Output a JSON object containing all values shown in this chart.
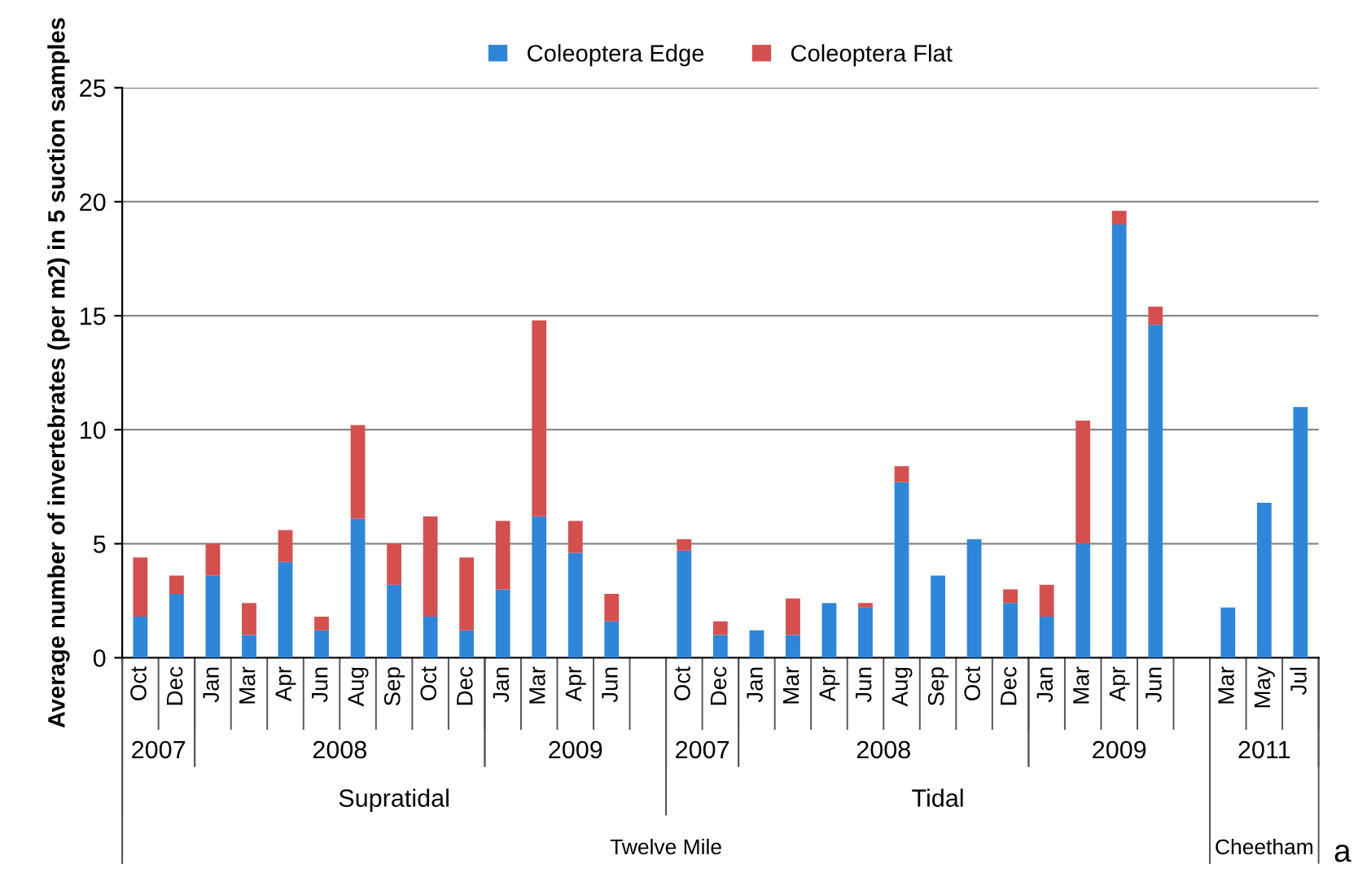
{
  "chart_data": {
    "type": "bar",
    "stacked": true,
    "ylabel": "Average number of invertebrates (per m2) in 5 suction samples",
    "categories": [
      "Oct",
      "Dec",
      "Jan",
      "Mar",
      "Apr",
      "Jun",
      "Aug",
      "Sep",
      "Oct",
      "Dec",
      "Jan",
      "Mar",
      "Apr",
      "Jun",
      null,
      "Oct",
      "Dec",
      "Jan",
      "Mar",
      "Apr",
      "Jun",
      "Aug",
      "Sep",
      "Oct",
      "Dec",
      "Jan",
      "Mar",
      "Apr",
      "Jun",
      null,
      "Mar",
      "May",
      "Jul"
    ],
    "series": [
      {
        "name": "Coleoptera Edge",
        "color": "#2f86d8",
        "values": [
          1.8,
          2.8,
          3.6,
          1.0,
          4.2,
          1.2,
          6.1,
          3.2,
          1.8,
          1.2,
          3.0,
          6.2,
          4.6,
          1.6,
          null,
          4.7,
          1.0,
          1.2,
          1.0,
          2.4,
          2.2,
          7.7,
          3.6,
          5.2,
          2.4,
          1.8,
          5.0,
          19.0,
          14.6,
          null,
          2.2,
          6.8,
          11.0
        ]
      },
      {
        "name": "Coleoptera Flat",
        "color": "#d4504f",
        "values": [
          2.6,
          0.8,
          1.4,
          1.4,
          1.4,
          0.6,
          4.1,
          1.8,
          4.4,
          3.2,
          3.0,
          8.6,
          1.4,
          1.2,
          null,
          0.5,
          0.6,
          0,
          1.6,
          0,
          0.2,
          0.7,
          0,
          0,
          0.6,
          1.4,
          5.4,
          0.6,
          0.8,
          null,
          0,
          0,
          0
        ]
      }
    ],
    "ylim": [
      0,
      25
    ],
    "yticks": [
      0,
      5,
      10,
      15,
      20,
      25
    ],
    "grid": "y",
    "legend": "top",
    "annotations": [
      "2007",
      "2008",
      "2009",
      "2007",
      "2008",
      "2009",
      "2011",
      "Supratidal",
      "Tidal",
      "Twelve Mile",
      "Cheetham",
      "a"
    ]
  }
}
